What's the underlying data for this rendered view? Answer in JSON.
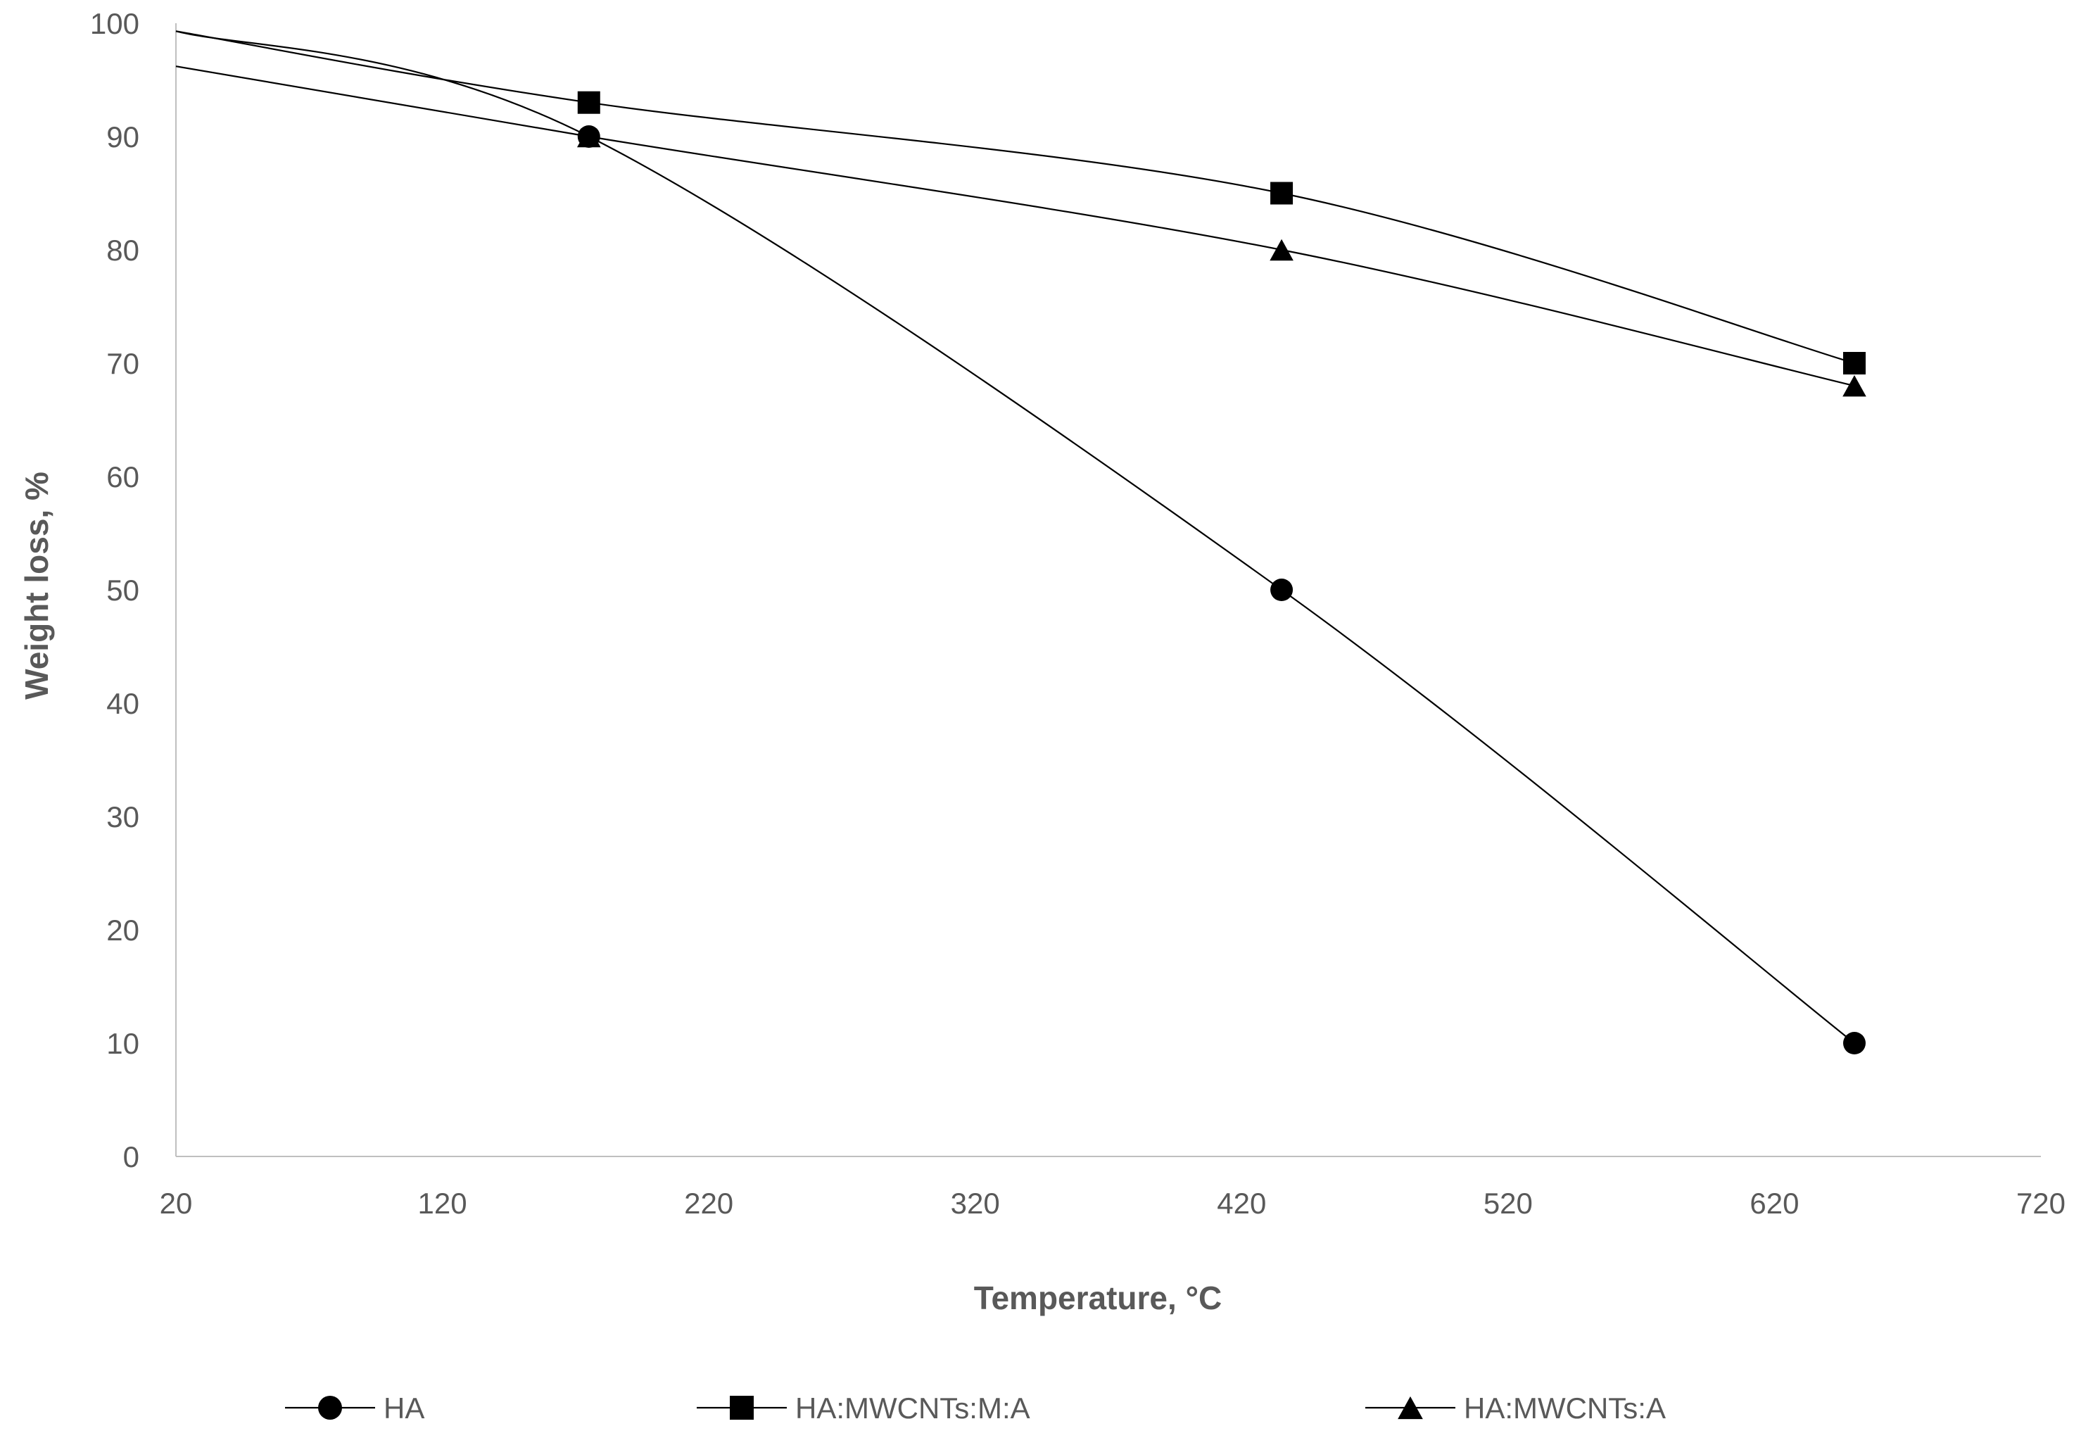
{
  "chart_data": {
    "type": "line",
    "title": "",
    "xlabel": "Temperature, °C",
    "xlabel_main": "Temperature, ",
    "xlabel_unit": "°C",
    "ylabel": "Weight loss, %",
    "xlim": [
      20,
      720
    ],
    "ylim": [
      0,
      100
    ],
    "xticks": [
      20,
      120,
      220,
      320,
      420,
      520,
      620,
      720
    ],
    "yticks": [
      0,
      10,
      20,
      30,
      40,
      50,
      60,
      70,
      80,
      90,
      100
    ],
    "grid": false,
    "legend_position": "bottom",
    "series": [
      {
        "name": "HA",
        "marker": "circle",
        "curve_points": [
          [
            20,
            99.3
          ],
          [
            175,
            90
          ],
          [
            435,
            50
          ],
          [
            650,
            10
          ]
        ],
        "marker_points": [
          [
            175,
            90
          ],
          [
            435,
            50
          ],
          [
            650,
            10
          ]
        ]
      },
      {
        "name": "HA:MWCNTs:M:A",
        "marker": "square",
        "curve_points": [
          [
            20,
            99.3
          ],
          [
            175,
            93
          ],
          [
            435,
            85
          ],
          [
            650,
            70
          ]
        ],
        "marker_points": [
          [
            175,
            93
          ],
          [
            435,
            85
          ],
          [
            650,
            70
          ]
        ]
      },
      {
        "name": "HA:MWCNTs:A",
        "marker": "triangle",
        "curve_points": [
          [
            20,
            96.2
          ],
          [
            175,
            90
          ],
          [
            435,
            80
          ],
          [
            650,
            68
          ]
        ],
        "marker_points": [
          [
            175,
            90
          ],
          [
            435,
            80
          ],
          [
            650,
            68
          ]
        ]
      }
    ]
  }
}
